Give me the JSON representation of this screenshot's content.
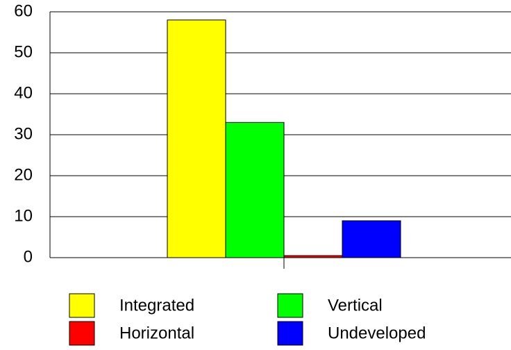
{
  "chart_data": {
    "type": "bar",
    "categories": [
      null
    ],
    "series": [
      {
        "name": "Integrated",
        "color": "#ffff00",
        "values": [
          58
        ]
      },
      {
        "name": "Vertical",
        "color": "#00ff00",
        "values": [
          33
        ]
      },
      {
        "name": "Horizontal",
        "color": "#ff0000",
        "values": [
          0.5
        ]
      },
      {
        "name": "Undeveloped",
        "color": "#0000ff",
        "values": [
          9
        ]
      }
    ],
    "ylim": [
      0,
      60
    ],
    "yticks": [
      0,
      10,
      20,
      30,
      40,
      50,
      60
    ],
    "grid": true,
    "legend": "bottom"
  }
}
